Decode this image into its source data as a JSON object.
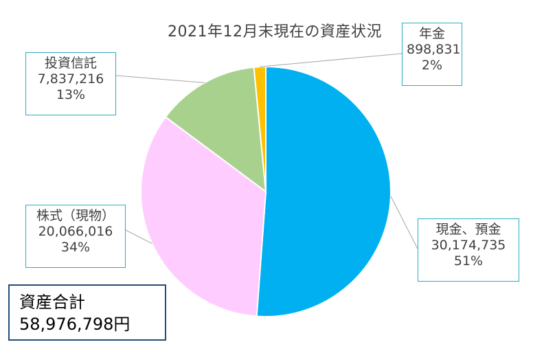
{
  "chart_data": {
    "type": "pie",
    "title": "2021年12月末現在の資産状況",
    "slices": [
      {
        "label": "現金、預金",
        "value": 30174735,
        "value_text": "30,174,735",
        "percent": "51%",
        "color": "#00b0f0"
      },
      {
        "label": "株式（現物）",
        "value": 20066016,
        "value_text": "20,066,016",
        "percent": "34%",
        "color": "#ffccff"
      },
      {
        "label": "投資信託",
        "value": 7837216,
        "value_text": "7,837,216",
        "percent": "13%",
        "color": "#a9d18e"
      },
      {
        "label": "年金",
        "value": 898831,
        "value_text": "898,831",
        "percent": "2%",
        "color": "#ffc000"
      }
    ],
    "start": "12 o'clock",
    "direction": "clockwise"
  },
  "total": {
    "label": "資産合計",
    "value": "58,976,798円"
  }
}
